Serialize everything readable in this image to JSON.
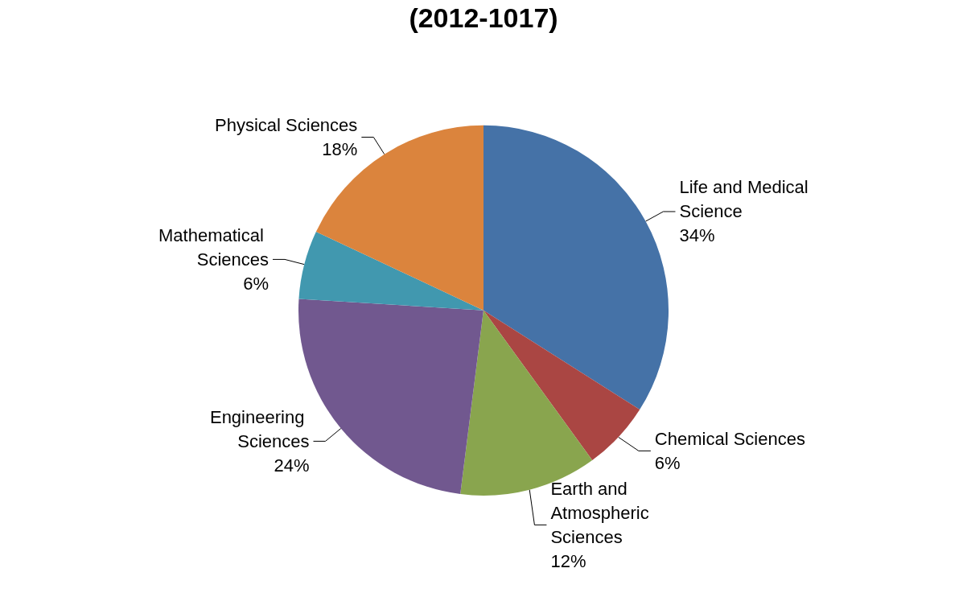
{
  "chart_data": {
    "type": "pie",
    "title": "(2012-1017)",
    "categories": [
      "Life and Medical Science",
      "Chemical Sciences",
      "Earth and Atmospheric Sciences",
      "Engineering Sciences",
      "Mathematical Sciences",
      "Physical Sciences"
    ],
    "values": [
      34,
      6,
      12,
      24,
      6,
      18
    ],
    "colors": [
      "#4572a7",
      "#aa4643",
      "#89a54e",
      "#71588f",
      "#4198af",
      "#db843d"
    ],
    "value_labels": [
      "34%",
      "6%",
      "12%",
      "24%",
      "6%",
      "18%"
    ],
    "legend": false
  }
}
